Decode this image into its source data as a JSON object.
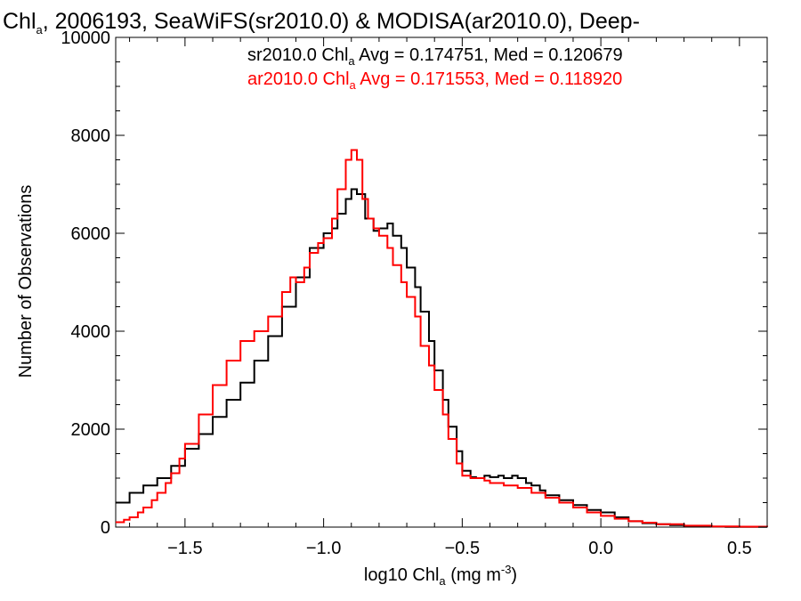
{
  "chart_data": {
    "type": "line",
    "title": {
      "pre": "Chl",
      "sub": "a",
      "post": ", 2006193, SeaWiFS(sr2010.0) & MODISA(ar2010.0), Deep-"
    },
    "xlabel": {
      "pre": "log10 Chl",
      "sub": "a",
      "mid": " (mg m",
      "sup": "-3",
      "post": ")"
    },
    "ylabel": "Number of Observations",
    "xlim": [
      -1.75,
      0.6
    ],
    "ylim": [
      0,
      10000
    ],
    "xticks": [
      -1.5,
      -1.0,
      -0.5,
      0.0,
      0.5
    ],
    "xtick_labels": [
      "−1.5",
      "−1.0",
      "−0.5",
      "0.0",
      "0.5"
    ],
    "yticks": [
      0,
      2000,
      4000,
      6000,
      8000,
      10000
    ],
    "ytick_labels": [
      "0",
      "2000",
      "4000",
      "6000",
      "8000",
      "10000"
    ],
    "grid": false,
    "annotations": [
      {
        "pre": "sr2010.0 Chl",
        "sub": "a",
        "post": " Avg = 0.174751, Med = 0.120679",
        "color": "#000000"
      },
      {
        "pre": "ar2010.0 Chl",
        "sub": "a",
        "post": " Avg = 0.171553, Med = 0.118920",
        "color": "#ff0000"
      }
    ],
    "series": [
      {
        "color": "#000000",
        "x": [
          -1.75,
          -1.7,
          -1.65,
          -1.6,
          -1.55,
          -1.5,
          -1.45,
          -1.4,
          -1.35,
          -1.3,
          -1.25,
          -1.2,
          -1.15,
          -1.1,
          -1.05,
          -1.0,
          -0.97,
          -0.95,
          -0.92,
          -0.9,
          -0.88,
          -0.85,
          -0.82,
          -0.8,
          -0.77,
          -0.75,
          -0.72,
          -0.7,
          -0.67,
          -0.65,
          -0.62,
          -0.6,
          -0.57,
          -0.55,
          -0.52,
          -0.5,
          -0.47,
          -0.45,
          -0.42,
          -0.4,
          -0.37,
          -0.35,
          -0.32,
          -0.3,
          -0.27,
          -0.25,
          -0.22,
          -0.2,
          -0.15,
          -0.1,
          -0.05,
          0.0,
          0.05,
          0.1,
          0.15,
          0.2,
          0.25,
          0.3,
          0.35,
          0.4,
          0.45,
          0.5,
          0.55,
          0.6
        ],
        "y": [
          500,
          700,
          850,
          1000,
          1250,
          1600,
          1900,
          2250,
          2600,
          2950,
          3400,
          3900,
          4500,
          5100,
          5700,
          6000,
          6100,
          6400,
          6700,
          6900,
          6800,
          6300,
          6050,
          6100,
          6200,
          5950,
          5700,
          5300,
          4900,
          4400,
          3800,
          3200,
          2600,
          2050,
          1550,
          1150,
          1020,
          1000,
          1050,
          1020,
          1050,
          1000,
          1050,
          1000,
          900,
          850,
          750,
          650,
          550,
          450,
          350,
          300,
          200,
          120,
          80,
          60,
          40,
          25,
          15,
          10,
          5,
          5,
          5,
          5
        ]
      },
      {
        "color": "#ff0000",
        "x": [
          -1.75,
          -1.72,
          -1.7,
          -1.67,
          -1.65,
          -1.62,
          -1.6,
          -1.57,
          -1.55,
          -1.52,
          -1.5,
          -1.45,
          -1.4,
          -1.35,
          -1.3,
          -1.25,
          -1.2,
          -1.15,
          -1.12,
          -1.1,
          -1.07,
          -1.05,
          -1.02,
          -1.0,
          -0.97,
          -0.95,
          -0.92,
          -0.9,
          -0.88,
          -0.86,
          -0.84,
          -0.82,
          -0.8,
          -0.77,
          -0.75,
          -0.72,
          -0.7,
          -0.67,
          -0.65,
          -0.62,
          -0.6,
          -0.57,
          -0.55,
          -0.52,
          -0.5,
          -0.47,
          -0.45,
          -0.42,
          -0.4,
          -0.35,
          -0.3,
          -0.25,
          -0.2,
          -0.15,
          -0.1,
          -0.05,
          0.0,
          0.05,
          0.1,
          0.15,
          0.2,
          0.3,
          0.4,
          0.5,
          0.6
        ],
        "y": [
          100,
          150,
          200,
          300,
          400,
          550,
          700,
          900,
          1100,
          1400,
          1700,
          2300,
          2900,
          3400,
          3800,
          4000,
          4300,
          4800,
          5100,
          5000,
          5300,
          5600,
          5800,
          5900,
          6300,
          6900,
          7500,
          7700,
          7500,
          6700,
          6300,
          6100,
          5950,
          5700,
          5350,
          5000,
          4700,
          4300,
          3700,
          3300,
          2800,
          2300,
          1800,
          1300,
          1050,
          1000,
          1000,
          950,
          900,
          850,
          800,
          700,
          600,
          500,
          400,
          300,
          230,
          170,
          120,
          90,
          60,
          30,
          15,
          10,
          5
        ]
      }
    ]
  }
}
